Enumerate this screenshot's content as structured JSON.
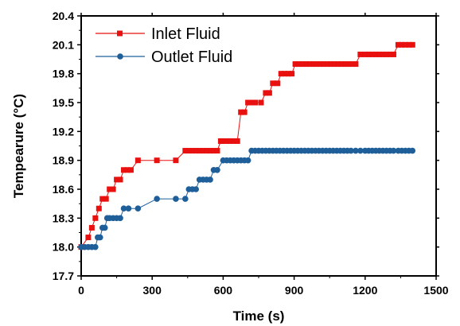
{
  "chart_data": {
    "type": "line",
    "title": "",
    "xlabel": "Time (s)",
    "ylabel": "Tempearure (°C)",
    "xlim": [
      0,
      1500
    ],
    "ylim": [
      17.7,
      20.4
    ],
    "x_ticks": [
      "0",
      "300",
      "600",
      "900",
      "1200",
      "1500"
    ],
    "y_ticks": [
      "17.7",
      "18.0",
      "18.3",
      "18.6",
      "18.9",
      "19.2",
      "19.5",
      "19.8",
      "20.1",
      "20.4"
    ],
    "grid": false,
    "legend_position": "top-left",
    "series": [
      {
        "name": "Inlet Fluid",
        "color": "#e8110f",
        "marker": "square",
        "x": [
          0,
          30,
          45,
          60,
          75,
          90,
          105,
          120,
          135,
          150,
          165,
          180,
          195,
          210,
          240,
          320,
          400,
          440,
          455,
          470,
          485,
          500,
          515,
          530,
          545,
          560,
          575,
          590,
          600,
          615,
          630,
          645,
          660,
          675,
          690,
          705,
          720,
          735,
          760,
          780,
          795,
          810,
          830,
          845,
          860,
          875,
          890,
          905,
          920,
          935,
          950,
          965,
          980,
          995,
          1010,
          1025,
          1040,
          1055,
          1070,
          1085,
          1100,
          1115,
          1130,
          1145,
          1160,
          1180,
          1200,
          1215,
          1230,
          1245,
          1260,
          1275,
          1290,
          1305,
          1320,
          1340,
          1355,
          1370,
          1385,
          1400
        ],
        "y": [
          18.0,
          18.1,
          18.2,
          18.3,
          18.4,
          18.5,
          18.5,
          18.6,
          18.6,
          18.7,
          18.7,
          18.8,
          18.8,
          18.8,
          18.9,
          18.9,
          18.9,
          19.0,
          19.0,
          19.0,
          19.0,
          19.0,
          19.0,
          19.0,
          19.0,
          19.0,
          19.0,
          19.1,
          19.1,
          19.1,
          19.1,
          19.1,
          19.1,
          19.4,
          19.4,
          19.5,
          19.5,
          19.5,
          19.5,
          19.6,
          19.6,
          19.7,
          19.7,
          19.8,
          19.8,
          19.8,
          19.8,
          19.9,
          19.9,
          19.9,
          19.9,
          19.9,
          19.9,
          19.9,
          19.9,
          19.9,
          19.9,
          19.9,
          19.9,
          19.9,
          19.9,
          19.9,
          19.9,
          19.9,
          19.9,
          20.0,
          20.0,
          20.0,
          20.0,
          20.0,
          20.0,
          20.0,
          20.0,
          20.0,
          20.0,
          20.1,
          20.1,
          20.1,
          20.1,
          20.1
        ]
      },
      {
        "name": "Outlet Fluid",
        "color": "#1f5f99",
        "marker": "circle",
        "x": [
          0,
          15,
          30,
          45,
          60,
          70,
          80,
          90,
          100,
          110,
          120,
          135,
          150,
          165,
          180,
          200,
          240,
          320,
          400,
          440,
          455,
          470,
          485,
          500,
          515,
          530,
          545,
          560,
          575,
          600,
          615,
          630,
          645,
          660,
          675,
          690,
          705,
          720,
          735,
          750,
          765,
          780,
          795,
          810,
          825,
          840,
          855,
          870,
          885,
          900,
          915,
          930,
          945,
          960,
          975,
          990,
          1005,
          1020,
          1035,
          1050,
          1065,
          1080,
          1095,
          1110,
          1125,
          1140,
          1160,
          1180,
          1200,
          1215,
          1230,
          1245,
          1260,
          1275,
          1290,
          1305,
          1320,
          1340,
          1355,
          1370,
          1385,
          1400
        ],
        "y": [
          18.0,
          18.0,
          18.0,
          18.0,
          18.0,
          18.1,
          18.1,
          18.2,
          18.2,
          18.3,
          18.3,
          18.3,
          18.3,
          18.3,
          18.4,
          18.4,
          18.4,
          18.5,
          18.5,
          18.5,
          18.6,
          18.6,
          18.6,
          18.7,
          18.7,
          18.7,
          18.7,
          18.8,
          18.8,
          18.9,
          18.9,
          18.9,
          18.9,
          18.9,
          18.9,
          18.9,
          18.9,
          19.0,
          19.0,
          19.0,
          19.0,
          19.0,
          19.0,
          19.0,
          19.0,
          19.0,
          19.0,
          19.0,
          19.0,
          19.0,
          19.0,
          19.0,
          19.0,
          19.0,
          19.0,
          19.0,
          19.0,
          19.0,
          19.0,
          19.0,
          19.0,
          19.0,
          19.0,
          19.0,
          19.0,
          19.0,
          19.0,
          19.0,
          19.0,
          19.0,
          19.0,
          19.0,
          19.0,
          19.0,
          19.0,
          19.0,
          19.0,
          19.0,
          19.0,
          19.0,
          19.0,
          19.0
        ]
      }
    ]
  }
}
